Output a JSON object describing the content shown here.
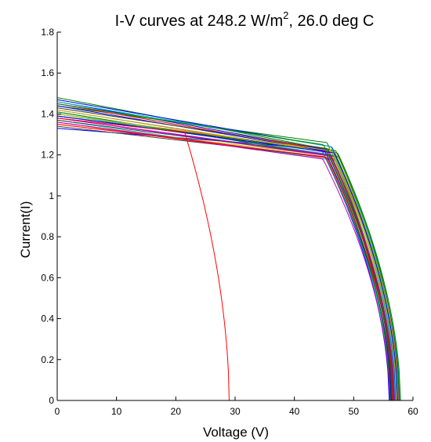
{
  "chart_data": {
    "type": "line",
    "title_main": "I-V curves at 248.2 W/m",
    "title_sup": "2",
    "title_rest": ", 26.0 deg C",
    "xlabel": "Voltage (V)",
    "ylabel": "Current(I)",
    "xlim": [
      0,
      60
    ],
    "ylim": [
      0,
      1.8
    ],
    "xticks": [
      0,
      10,
      20,
      30,
      40,
      50,
      60
    ],
    "yticks": [
      0,
      0.2,
      0.4,
      0.6,
      0.8,
      1,
      1.2,
      1.4,
      1.6,
      1.8
    ],
    "xtick_labels": [
      "0",
      "10",
      "20",
      "30",
      "40",
      "50",
      "60"
    ],
    "ytick_labels": [
      "0",
      "0.2",
      "0.4",
      "0.6",
      "0.8",
      "1",
      "1.2",
      "1.4",
      "1.6",
      "1.8"
    ],
    "grid": false,
    "series": [
      {
        "color": "#0000ff",
        "isc": 1.33,
        "voc": 56.0,
        "vk": 44.5,
        "ik": 1.23
      },
      {
        "color": "#008000",
        "isc": 1.48,
        "voc": 57.5,
        "vk": 47.0,
        "ik": 1.22
      },
      {
        "color": "#ff0000",
        "isc": 1.4,
        "voc": 56.5,
        "vk": 45.5,
        "ik": 1.22
      },
      {
        "color": "#00bfbf",
        "isc": 1.37,
        "voc": 57.8,
        "vk": 47.5,
        "ik": 1.17
      },
      {
        "color": "#bf00bf",
        "isc": 1.42,
        "voc": 56.8,
        "vk": 46.0,
        "ik": 1.21
      },
      {
        "color": "#bfbf00",
        "isc": 1.35,
        "voc": 56.3,
        "vk": 45.0,
        "ik": 1.2
      },
      {
        "color": "#404040",
        "isc": 1.39,
        "voc": 57.0,
        "vk": 46.5,
        "ik": 1.22
      },
      {
        "color": "#0000ff",
        "isc": 1.46,
        "voc": 57.2,
        "vk": 46.5,
        "ik": 1.22
      },
      {
        "color": "#008000",
        "isc": 1.44,
        "voc": 56.6,
        "vk": 45.5,
        "ik": 1.26
      },
      {
        "color": "#ff0000",
        "isc": 1.36,
        "voc": 57.4,
        "vk": 46.8,
        "ik": 1.18
      },
      {
        "color": "#00bfbf",
        "isc": 1.41,
        "voc": 56.2,
        "vk": 45.0,
        "ik": 1.2
      },
      {
        "color": "#bf00bf",
        "isc": 1.38,
        "voc": 57.6,
        "vk": 47.0,
        "ik": 1.19
      },
      {
        "color": "#bfbf00",
        "isc": 1.43,
        "voc": 56.9,
        "vk": 46.0,
        "ik": 1.23
      },
      {
        "color": "#404040",
        "isc": 1.34,
        "voc": 56.4,
        "vk": 45.2,
        "ik": 1.19
      },
      {
        "color": "#0000ff",
        "isc": 1.47,
        "voc": 57.1,
        "vk": 46.3,
        "ik": 1.24
      },
      {
        "color": "#008000",
        "isc": 1.39,
        "voc": 57.7,
        "vk": 47.3,
        "ik": 1.21
      },
      {
        "color": "#ff0000",
        "isc": 1.45,
        "voc": 56.7,
        "vk": 45.8,
        "ik": 1.22
      },
      {
        "color": "#00bfbf",
        "isc": 1.4,
        "voc": 57.3,
        "vk": 46.6,
        "ik": 1.2
      },
      {
        "color": "#bf00bf",
        "isc": 1.36,
        "voc": 56.1,
        "vk": 44.8,
        "ik": 1.18
      },
      {
        "color": "#bfbf00",
        "isc": 1.42,
        "voc": 57.5,
        "vk": 46.9,
        "ik": 1.21
      },
      {
        "color": "#404040",
        "isc": 1.37,
        "voc": 56.8,
        "vk": 45.7,
        "ik": 1.2
      },
      {
        "color": "#0000ff",
        "isc": 1.44,
        "voc": 56.3,
        "vk": 45.1,
        "ik": 1.22
      },
      {
        "color": "#008000",
        "isc": 1.41,
        "voc": 57.9,
        "vk": 47.6,
        "ik": 1.19
      },
      {
        "color": "#ff0000",
        "isc": 1.35,
        "voc": 56.6,
        "vk": 45.4,
        "ik": 1.19
      },
      {
        "color": "#00bfbf",
        "isc": 1.46,
        "voc": 57.0,
        "vk": 46.2,
        "ik": 1.24
      },
      {
        "color": "#bf00bf",
        "isc": 1.38,
        "voc": 56.9,
        "vk": 46.0,
        "ik": 1.2
      },
      {
        "color": "#bfbf00",
        "isc": 1.4,
        "voc": 57.2,
        "vk": 46.4,
        "ik": 1.22
      },
      {
        "color": "#404040",
        "isc": 1.43,
        "voc": 56.5,
        "vk": 45.6,
        "ik": 1.23
      },
      {
        "color": "#0000ff",
        "isc": 1.39,
        "voc": 57.4,
        "vk": 46.7,
        "ik": 1.21
      },
      {
        "color": "#008000",
        "isc": 1.45,
        "voc": 56.2,
        "vk": 44.9,
        "ik": 1.25
      },
      {
        "color": "#ff0000",
        "isc": 1.38,
        "voc": 29.0,
        "vk": 21.5,
        "ik": 1.31
      }
    ]
  }
}
